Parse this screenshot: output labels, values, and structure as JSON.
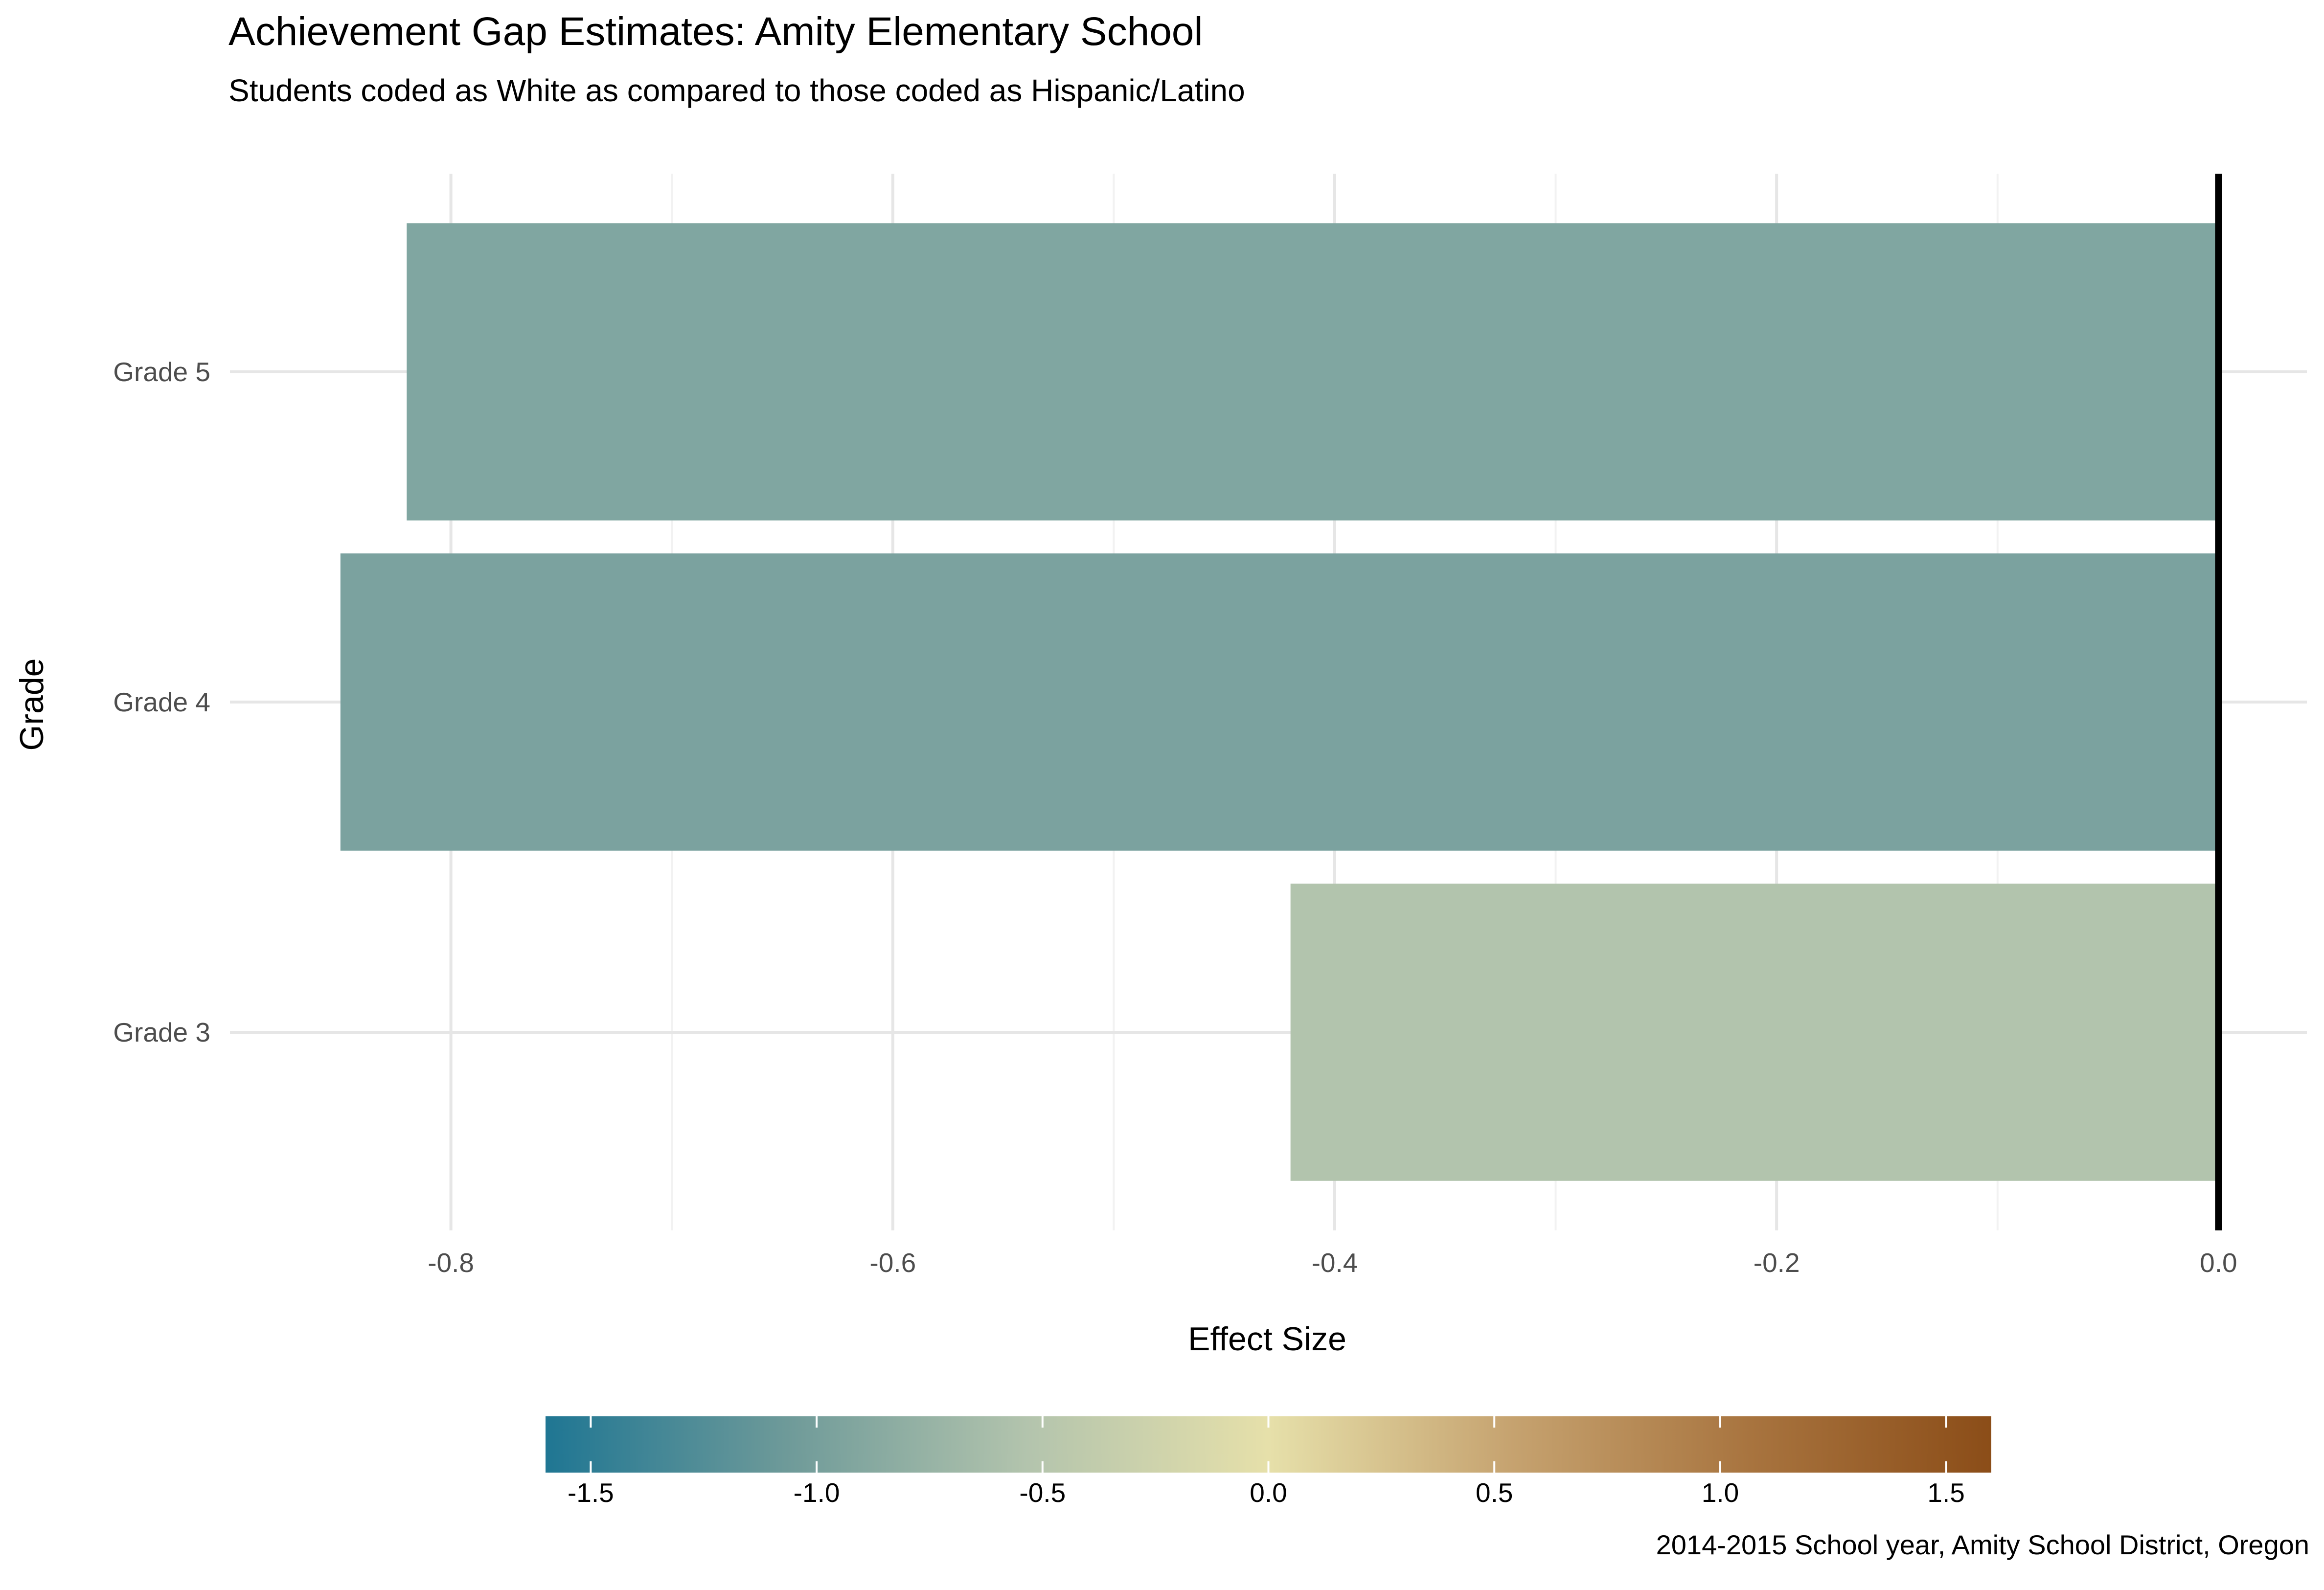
{
  "chart_data": {
    "type": "bar",
    "orientation": "horizontal",
    "title": "Achievement Gap Estimates: Amity Elementary School",
    "subtitle": "Students coded as White as compared to those coded as Hispanic/Latino",
    "caption": "2014-2015 School year, Amity School District, Oregon",
    "xlabel": "Effect Size",
    "ylabel": "Grade",
    "categories": [
      "Grade 3",
      "Grade 4",
      "Grade 5"
    ],
    "values": [
      -0.42,
      -0.85,
      -0.82
    ],
    "colors": [
      "#b2c4ad",
      "#7ba29f",
      "#80a6a1"
    ],
    "xlim": [
      -0.9,
      0.04
    ],
    "x_ticks": [
      "-0.8",
      "-0.6",
      "-0.4",
      "-0.2",
      "0.0"
    ],
    "x_tick_values": [
      -0.8,
      -0.6,
      -0.4,
      -0.2,
      0.0
    ],
    "reference_line": 0,
    "grid": true,
    "legend": {
      "type": "colorbar",
      "position": "bottom",
      "range": [
        -1.6,
        1.6
      ],
      "ticks": [
        "-1.5",
        "-1.0",
        "-0.5",
        "0.0",
        "0.5",
        "1.0",
        "1.5"
      ],
      "tick_values": [
        -1.5,
        -1.0,
        -0.5,
        0.0,
        0.5,
        1.0,
        1.5
      ],
      "colors": [
        "#1f7693",
        "#6e9a99",
        "#b3c4ad",
        "#e6e0aa",
        "#c6a370",
        "#a8743f",
        "#8b4d18"
      ]
    }
  }
}
